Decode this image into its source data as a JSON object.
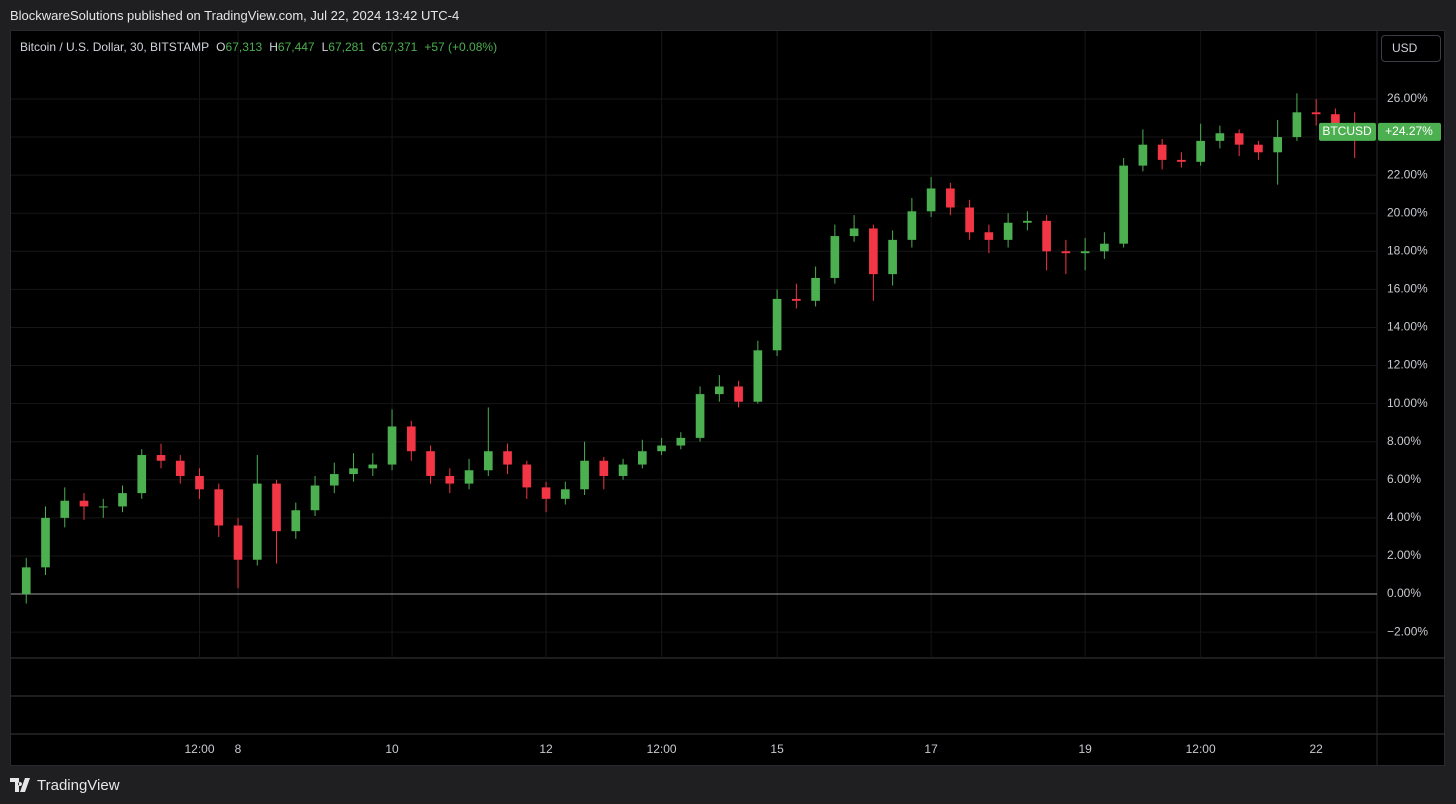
{
  "header": {
    "text": "BlockwareSolutions published on TradingView.com, Jul 22, 2024 13:42 UTC-4"
  },
  "footer": {
    "brand": "TradingView"
  },
  "chart_data": {
    "type": "candlestick",
    "legend": {
      "symbol": "Bitcoin / U.S. Dollar, 30, BITSTAMP",
      "ohlc": [
        {
          "key": "O",
          "value": "67,313"
        },
        {
          "key": "H",
          "value": "67,447"
        },
        {
          "key": "L",
          "value": "67,281"
        },
        {
          "key": "C",
          "value": "67,371"
        }
      ],
      "change": "+57 (+0.08%)"
    },
    "currency": "USD",
    "up_color": "#4caf50",
    "down_color": "#f23645",
    "grid": true,
    "baseline": 0,
    "last_value": {
      "name": "BTCUSD",
      "value": 24.27,
      "label": "+24.27%"
    },
    "xlim": [
      5.052,
      22.79
    ],
    "xticks": [
      {
        "value": 7.5,
        "label": "12:00"
      },
      8,
      10,
      12,
      {
        "value": 13.5,
        "label": "12:00"
      },
      15,
      17,
      19,
      {
        "value": 20.5,
        "label": "12:00"
      },
      22
    ],
    "ylim": [
      -3.36,
      29.57
    ],
    "yticks": [
      {
        "value": -2,
        "label": "−2.00%"
      },
      {
        "value": 0,
        "label": "0.00%"
      },
      {
        "value": 2,
        "label": "2.00%"
      },
      {
        "value": 4,
        "label": "4.00%"
      },
      {
        "value": 6,
        "label": "6.00%"
      },
      {
        "value": 8,
        "label": "8.00%"
      },
      {
        "value": 10,
        "label": "10.00%"
      },
      {
        "value": 12,
        "label": "12.00%"
      },
      {
        "value": 14,
        "label": "14.00%"
      },
      {
        "value": 16,
        "label": "16.00%"
      },
      {
        "value": 18,
        "label": "18.00%"
      },
      {
        "value": 20,
        "label": "20.00%"
      },
      {
        "value": 22,
        "label": "22.00%"
      },
      {
        "value": 24,
        "label": "24.00%"
      },
      {
        "value": 26,
        "label": "26.00%"
      }
    ],
    "x": [
      5.25,
      5.5,
      5.75,
      6.0,
      6.25,
      6.5,
      6.75,
      7.0,
      7.25,
      7.5,
      7.75,
      8.0,
      8.25,
      8.5,
      8.75,
      9.0,
      9.25,
      9.5,
      9.75,
      10.0,
      10.25,
      10.5,
      10.75,
      11.0,
      11.25,
      11.5,
      11.75,
      12.0,
      12.25,
      12.5,
      12.75,
      13.0,
      13.25,
      13.5,
      13.75,
      14.0,
      14.25,
      14.5,
      14.75,
      15.0,
      15.25,
      15.5,
      15.75,
      16.0,
      16.25,
      16.5,
      16.75,
      17.0,
      17.25,
      17.5,
      17.75,
      18.0,
      18.25,
      18.5,
      18.75,
      19.0,
      19.25,
      19.5,
      19.75,
      20.0,
      20.25,
      20.5,
      20.75,
      21.0,
      21.25,
      21.5,
      21.75,
      22.0,
      22.25,
      22.5
    ],
    "open": [
      0,
      1.4,
      4.0,
      4.9,
      4.6,
      4.6,
      5.3,
      7.3,
      7.0,
      6.2,
      5.5,
      3.6,
      1.8,
      5.8,
      3.3,
      4.4,
      5.7,
      6.3,
      6.6,
      6.8,
      8.8,
      7.5,
      6.2,
      5.8,
      6.5,
      7.5,
      6.8,
      5.6,
      5.0,
      5.5,
      7.0,
      6.2,
      6.8,
      7.5,
      7.8,
      8.2,
      10.5,
      10.9,
      10.1,
      12.8,
      15.5,
      15.4,
      16.6,
      18.8,
      19.2,
      16.8,
      18.6,
      20.1,
      21.3,
      20.3,
      19.0,
      18.6,
      19.5,
      19.6,
      18.0,
      17.9,
      18.0,
      18.4,
      22.5,
      23.6,
      22.8,
      22.7,
      23.8,
      24.2,
      23.6,
      23.2,
      24.0,
      25.3,
      25.2,
      24.3
    ],
    "high": [
      1.9,
      4.6,
      5.6,
      5.3,
      5.0,
      5.7,
      7.6,
      7.9,
      7.3,
      6.6,
      5.8,
      4.0,
      7.3,
      6.0,
      4.8,
      6.2,
      6.9,
      7.4,
      7.4,
      9.7,
      9.1,
      7.8,
      6.6,
      7.1,
      9.8,
      7.9,
      7.0,
      5.9,
      5.9,
      8.0,
      7.2,
      7.1,
      8.1,
      8.2,
      8.5,
      10.9,
      11.5,
      11.2,
      13.3,
      16.0,
      16.3,
      17.2,
      19.4,
      19.9,
      19.4,
      19.1,
      20.8,
      21.9,
      21.6,
      20.7,
      19.4,
      20.0,
      20.1,
      19.9,
      18.6,
      18.7,
      19.0,
      22.9,
      24.4,
      23.9,
      23.2,
      24.7,
      24.6,
      24.4,
      23.8,
      24.9,
      26.3,
      26.0,
      25.5,
      25.3
    ],
    "low": [
      -0.5,
      1.0,
      3.5,
      3.9,
      4.0,
      4.3,
      5.0,
      6.6,
      5.8,
      5.0,
      3.0,
      0.3,
      1.5,
      1.6,
      2.9,
      4.1,
      5.3,
      5.9,
      6.2,
      6.5,
      7.0,
      5.8,
      5.3,
      5.5,
      6.2,
      6.3,
      5.0,
      4.3,
      4.7,
      5.2,
      5.5,
      6.0,
      6.6,
      7.3,
      7.6,
      8.0,
      10.1,
      9.8,
      10.0,
      12.5,
      15.0,
      15.1,
      16.3,
      18.5,
      15.4,
      16.2,
      18.2,
      19.8,
      19.9,
      18.6,
      17.9,
      18.2,
      19.1,
      17.0,
      16.8,
      17.0,
      17.6,
      18.2,
      22.2,
      22.3,
      22.4,
      22.5,
      23.4,
      23.0,
      22.8,
      21.5,
      23.8,
      24.6,
      23.8,
      22.9
    ],
    "close": [
      1.4,
      4.0,
      4.9,
      4.6,
      4.6,
      5.3,
      7.3,
      7.0,
      6.2,
      5.5,
      3.6,
      1.8,
      5.8,
      3.3,
      4.4,
      5.7,
      6.3,
      6.6,
      6.8,
      8.8,
      7.5,
      6.2,
      5.8,
      6.5,
      7.5,
      6.8,
      5.6,
      5.0,
      5.5,
      7.0,
      6.2,
      6.8,
      7.5,
      7.8,
      8.2,
      10.5,
      10.9,
      10.1,
      12.8,
      15.5,
      15.4,
      16.6,
      18.8,
      19.2,
      16.8,
      18.6,
      20.1,
      21.3,
      20.3,
      19.0,
      18.6,
      19.5,
      19.6,
      18.0,
      17.9,
      18.0,
      18.4,
      22.5,
      23.6,
      22.8,
      22.7,
      23.8,
      24.2,
      23.6,
      23.2,
      24.0,
      25.3,
      25.2,
      24.3,
      24.27
    ]
  }
}
